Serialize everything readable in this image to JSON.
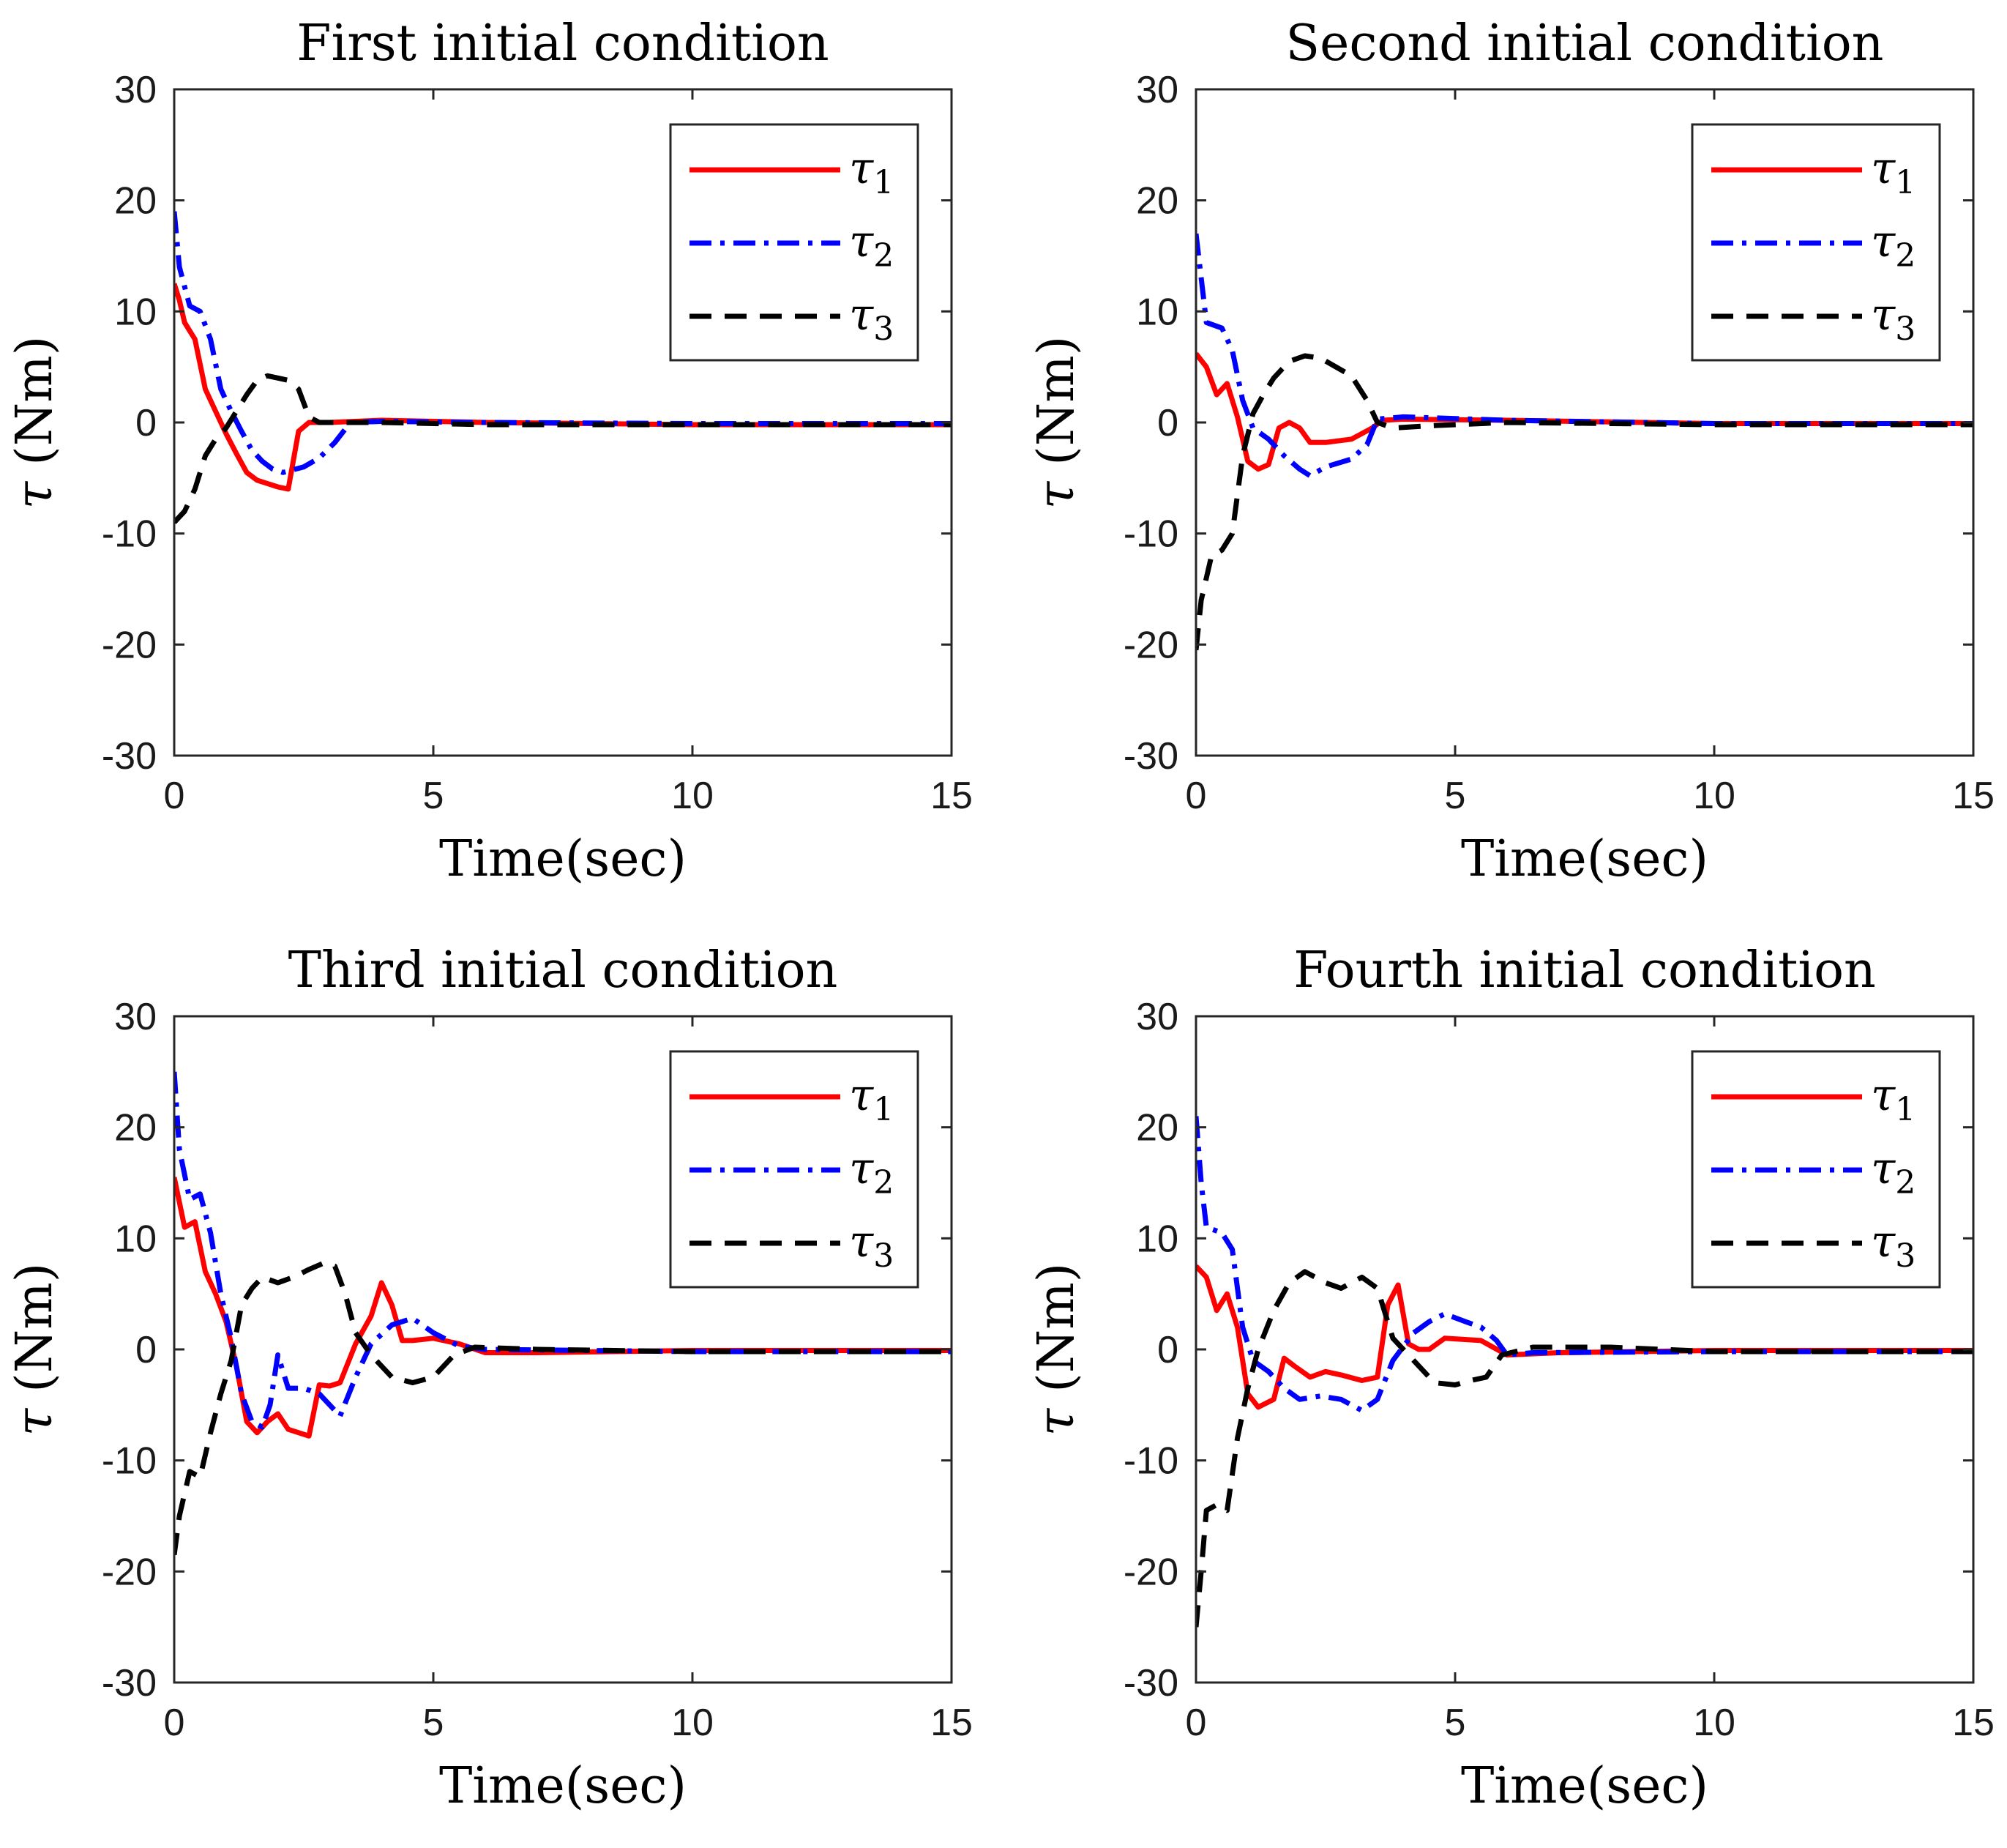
{
  "chart_data": [
    {
      "type": "line",
      "title": "First initial condition",
      "xlabel": "Time(sec)",
      "ylabel_symbol": "τ",
      "ylabel_unit": "(Nm)",
      "xlim": [
        0,
        15
      ],
      "ylim": [
        -30,
        30
      ],
      "xticks": [
        0,
        5,
        10,
        15
      ],
      "yticks": [
        -30,
        -20,
        -10,
        0,
        10,
        20,
        30
      ],
      "legend": "top-right",
      "series": [
        {
          "name": "τ1",
          "symbol": "τ",
          "sub": "1",
          "color": "#ff0000",
          "style": "solid",
          "x": [
            0,
            0.1,
            0.2,
            0.4,
            0.6,
            0.8,
            1.0,
            1.2,
            1.4,
            1.6,
            1.8,
            2.0,
            2.2,
            2.4,
            2.6,
            3.0,
            4.0,
            6.0,
            10.0,
            15.0
          ],
          "y": [
            12.5,
            11,
            9,
            7.5,
            3,
            1,
            -1,
            -2.8,
            -4.5,
            -5.2,
            -5.5,
            -5.8,
            -6,
            -0.8,
            0,
            0,
            0.2,
            0,
            -0.2,
            -0.2
          ]
        },
        {
          "name": "τ2",
          "symbol": "τ",
          "sub": "2",
          "color": "#0000ff",
          "style": "dashdot",
          "x": [
            0,
            0.1,
            0.3,
            0.5,
            0.7,
            0.9,
            1.1,
            1.3,
            1.5,
            1.7,
            1.9,
            2.1,
            2.5,
            2.8,
            3.1,
            3.4,
            4.0,
            6.0,
            10.0,
            15.0
          ],
          "y": [
            19,
            14,
            10.5,
            10,
            7.5,
            3,
            1,
            -0.8,
            -2.5,
            -3.5,
            -4.2,
            -4.5,
            -4,
            -3.2,
            -1.8,
            0,
            0.1,
            0,
            -0.1,
            -0.1
          ]
        },
        {
          "name": "τ3",
          "symbol": "τ",
          "sub": "3",
          "color": "#000000",
          "style": "dashed",
          "x": [
            0,
            0.2,
            0.4,
            0.6,
            0.8,
            1.0,
            1.2,
            1.4,
            1.6,
            1.8,
            2.0,
            2.2,
            2.4,
            2.6,
            2.8,
            3.0,
            4.0,
            6.0,
            10.0,
            15.0
          ],
          "y": [
            -9,
            -8,
            -6,
            -3,
            -1.5,
            -0.5,
            1,
            2.5,
            3.8,
            4.2,
            4,
            3.8,
            3,
            0.5,
            0,
            0,
            0,
            -0.2,
            -0.2,
            -0.2
          ]
        }
      ]
    },
    {
      "type": "line",
      "title": "Second initial condition",
      "xlabel": "Time(sec)",
      "ylabel_symbol": "τ",
      "ylabel_unit": "(Nm)",
      "xlim": [
        0,
        15
      ],
      "ylim": [
        -30,
        30
      ],
      "xticks": [
        0,
        5,
        10,
        15
      ],
      "yticks": [
        -30,
        -20,
        -10,
        0,
        10,
        20,
        30
      ],
      "legend": "top-right",
      "series": [
        {
          "name": "τ1",
          "symbol": "τ",
          "sub": "1",
          "color": "#ff0000",
          "style": "solid",
          "x": [
            0,
            0.2,
            0.4,
            0.6,
            0.8,
            1.0,
            1.2,
            1.4,
            1.6,
            1.8,
            2.0,
            2.2,
            2.5,
            3.0,
            3.2,
            3.4,
            3.6,
            4.0,
            6.0,
            10.0,
            15.0
          ],
          "y": [
            6.2,
            5,
            2.5,
            3.5,
            0.5,
            -3.5,
            -4.2,
            -3.8,
            -0.5,
            0,
            -0.5,
            -1.8,
            -1.8,
            -1.5,
            -1,
            -0.5,
            0.2,
            0.3,
            0.2,
            -0.1,
            -0.1
          ]
        },
        {
          "name": "τ2",
          "symbol": "τ",
          "sub": "2",
          "color": "#0000ff",
          "style": "dashdot",
          "x": [
            0,
            0.1,
            0.2,
            0.5,
            0.7,
            0.9,
            1.1,
            1.4,
            1.7,
            2.0,
            2.2,
            2.5,
            3.0,
            3.3,
            3.5,
            4.0,
            6.0,
            10.0,
            15.0
          ],
          "y": [
            17,
            13,
            9,
            8.5,
            6.5,
            2,
            -0.5,
            -1.5,
            -3,
            -4.2,
            -4.8,
            -4,
            -3.3,
            -2,
            0.3,
            0.5,
            0.2,
            -0.1,
            -0.1
          ]
        },
        {
          "name": "τ3",
          "symbol": "τ",
          "sub": "3",
          "color": "#000000",
          "style": "dashed",
          "x": [
            0,
            0.1,
            0.3,
            0.5,
            0.7,
            0.9,
            1.1,
            1.3,
            1.5,
            1.8,
            2.1,
            2.4,
            2.7,
            3.0,
            3.3,
            3.5,
            3.8,
            4.5,
            6.0,
            10.0,
            15.0
          ],
          "y": [
            -20.5,
            -16,
            -12,
            -11.5,
            -10,
            -3,
            0.8,
            2.5,
            4,
            5.5,
            6,
            5.8,
            5,
            4.2,
            2,
            0,
            -0.5,
            -0.3,
            0,
            -0.2,
            -0.2
          ]
        }
      ]
    },
    {
      "type": "line",
      "title": "Third initial condition",
      "xlabel": "Time(sec)",
      "ylabel_symbol": "τ",
      "ylabel_unit": "(Nm)",
      "xlim": [
        0,
        15
      ],
      "ylim": [
        -30,
        30
      ],
      "xticks": [
        0,
        5,
        10,
        15
      ],
      "yticks": [
        -30,
        -20,
        -10,
        0,
        10,
        20,
        30
      ],
      "legend": "top-right",
      "series": [
        {
          "name": "τ1",
          "symbol": "τ",
          "sub": "1",
          "color": "#ff0000",
          "style": "solid",
          "x": [
            0,
            0.2,
            0.4,
            0.6,
            0.8,
            1.0,
            1.2,
            1.4,
            1.6,
            1.8,
            2.0,
            2.2,
            2.6,
            2.8,
            3.0,
            3.2,
            3.5,
            3.8,
            4.0,
            4.2,
            4.4,
            4.6,
            5.0,
            5.5,
            6.0,
            7.0,
            10.0,
            15.0
          ],
          "y": [
            15.5,
            11,
            11.5,
            7,
            5,
            2.5,
            -1.5,
            -6.5,
            -7.5,
            -6.5,
            -5.8,
            -7.2,
            -7.8,
            -3.2,
            -3.3,
            -3,
            0.5,
            3,
            6,
            4,
            0.8,
            0.8,
            1,
            0.5,
            -0.3,
            -0.3,
            -0.1,
            -0.1
          ]
        },
        {
          "name": "τ2",
          "symbol": "τ",
          "sub": "2",
          "color": "#0000ff",
          "style": "dashdot",
          "x": [
            0,
            0.1,
            0.3,
            0.5,
            0.7,
            0.9,
            1.1,
            1.3,
            1.5,
            1.7,
            1.85,
            2.0,
            2.2,
            2.5,
            2.8,
            3.2,
            3.5,
            3.8,
            4.2,
            4.6,
            5.0,
            5.5,
            6.0,
            10.0,
            15.0
          ],
          "y": [
            25,
            18,
            13.5,
            14,
            10.5,
            5,
            1,
            -4,
            -6.5,
            -7,
            -5,
            -0.5,
            -3.5,
            -3.5,
            -4,
            -6,
            -2.5,
            0.5,
            2.2,
            2.8,
            1.5,
            0.3,
            0,
            -0.2,
            -0.2
          ]
        },
        {
          "name": "τ3",
          "symbol": "τ",
          "sub": "3",
          "color": "#000000",
          "style": "dashed",
          "x": [
            0,
            0.1,
            0.3,
            0.5,
            0.7,
            0.9,
            1.1,
            1.3,
            1.5,
            1.7,
            2.0,
            2.3,
            2.6,
            2.9,
            3.1,
            3.3,
            3.5,
            3.8,
            4.2,
            4.6,
            5.0,
            5.4,
            5.8,
            7.0,
            10.0,
            15.0
          ],
          "y": [
            -18.5,
            -15,
            -11,
            -11.5,
            -7.5,
            -4,
            -1,
            4,
            5.5,
            6.5,
            6,
            6.5,
            7.2,
            7.8,
            7.5,
            5,
            1.5,
            -0.5,
            -2.5,
            -3,
            -2.5,
            -0.5,
            0.2,
            0,
            -0.2,
            -0.2
          ]
        }
      ]
    },
    {
      "type": "line",
      "title": "Fourth initial condition",
      "xlabel": "Time(sec)",
      "ylabel_symbol": "τ",
      "ylabel_unit": "(Nm)",
      "xlim": [
        0,
        15
      ],
      "ylim": [
        -30,
        30
      ],
      "xticks": [
        0,
        5,
        10,
        15
      ],
      "yticks": [
        -30,
        -20,
        -10,
        0,
        10,
        20,
        30
      ],
      "legend": "top-right",
      "series": [
        {
          "name": "τ1",
          "symbol": "τ",
          "sub": "1",
          "color": "#ff0000",
          "style": "solid",
          "x": [
            0,
            0.2,
            0.4,
            0.6,
            0.8,
            1.0,
            1.2,
            1.5,
            1.7,
            1.9,
            2.2,
            2.5,
            2.8,
            3.2,
            3.5,
            3.7,
            3.9,
            4.1,
            4.3,
            4.5,
            4.8,
            5.5,
            6.0,
            7.0,
            10.0,
            15.0
          ],
          "y": [
            7.5,
            6.5,
            3.5,
            5,
            2,
            -4,
            -5.2,
            -4.5,
            -0.8,
            -1.5,
            -2.5,
            -2,
            -2.3,
            -2.8,
            -2.5,
            4,
            5.8,
            0.5,
            0,
            0,
            1,
            0.8,
            -0.5,
            -0.3,
            -0.1,
            -0.1
          ]
        },
        {
          "name": "τ2",
          "symbol": "τ",
          "sub": "2",
          "color": "#0000ff",
          "style": "dashdot",
          "x": [
            0,
            0.1,
            0.2,
            0.5,
            0.7,
            0.9,
            1.1,
            1.4,
            1.7,
            2.0,
            2.4,
            2.8,
            3.2,
            3.5,
            3.8,
            4.2,
            4.5,
            4.8,
            5.2,
            5.5,
            5.8,
            6.0,
            6.5,
            10.0,
            15.0
          ],
          "y": [
            21,
            15,
            11,
            10.5,
            9,
            2,
            -1,
            -2,
            -3.5,
            -4.5,
            -4.2,
            -4.5,
            -5.5,
            -4.5,
            -1,
            1.5,
            2.5,
            3.2,
            2.5,
            2,
            0.8,
            -0.5,
            -0.3,
            -0.2,
            -0.2
          ]
        },
        {
          "name": "τ3",
          "symbol": "τ",
          "sub": "3",
          "color": "#000000",
          "style": "dashed",
          "x": [
            0,
            0.1,
            0.2,
            0.4,
            0.6,
            0.8,
            1.0,
            1.2,
            1.5,
            1.8,
            2.1,
            2.5,
            2.8,
            3.2,
            3.5,
            3.8,
            4.2,
            4.6,
            5.0,
            5.3,
            5.6,
            5.9,
            6.5,
            8.0,
            10.0,
            15.0
          ],
          "y": [
            -25,
            -20,
            -14.5,
            -14,
            -14.5,
            -8,
            -3.5,
            0,
            3.5,
            6,
            7,
            6,
            5.5,
            6.5,
            5.5,
            1,
            -1,
            -3,
            -3.2,
            -2.8,
            -2.5,
            -0.5,
            0.2,
            0.2,
            -0.2,
            -0.2
          ]
        }
      ]
    }
  ]
}
